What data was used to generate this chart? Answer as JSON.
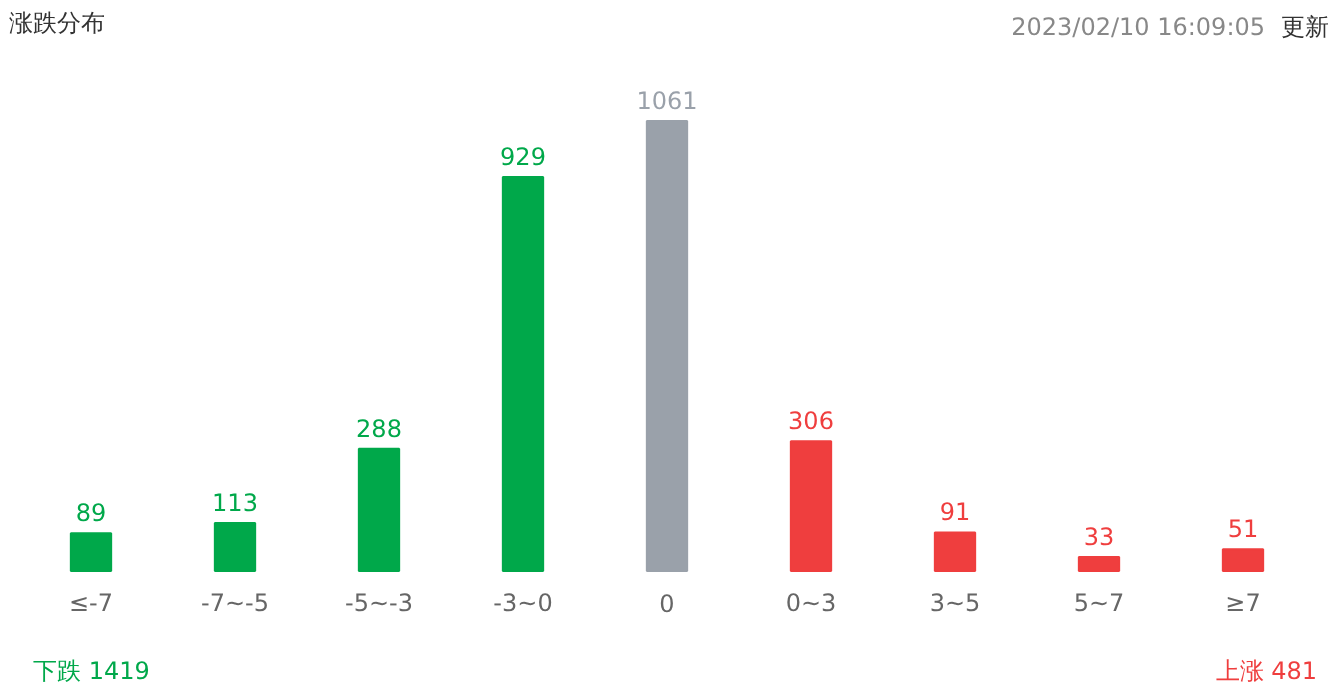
{
  "chart_data": {
    "type": "bar",
    "title": "涨跌分布",
    "categories": [
      "≤-7",
      "-7~-5",
      "-5~-3",
      "-3~0",
      "0",
      "0~3",
      "3~5",
      "5~7",
      "≥7"
    ],
    "values": [
      89,
      113,
      288,
      929,
      1061,
      306,
      91,
      33,
      51
    ],
    "colors": [
      "#00a84a",
      "#00a84a",
      "#00a84a",
      "#00a84a",
      "#9aa1aa",
      "#ef3e3e",
      "#ef3e3e",
      "#ef3e3e",
      "#ef3e3e"
    ],
    "data_labels": true,
    "grid": false,
    "annotations": [
      "2023/02/10 16:09:05",
      "更新",
      "下跌 1419",
      "上涨 481"
    ]
  }
}
